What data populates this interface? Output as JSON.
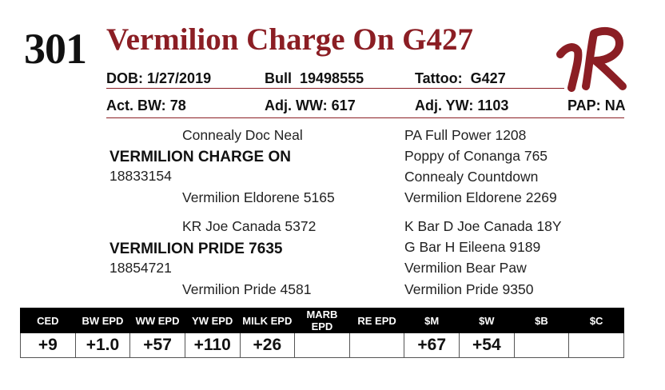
{
  "header": {
    "lot": "301",
    "name": "Vermilion Charge On G427",
    "logo_icon": "vr-brand-logo",
    "accent_color": "#8b1e24"
  },
  "info": {
    "dob_label": "DOB:",
    "dob": "1/27/2019",
    "bull_label": "Bull",
    "reg_no": "19498555",
    "tattoo_label": "Tattoo:",
    "tattoo": "G427",
    "bw_label": "Act. BW:",
    "bw": "78",
    "ww_label": "Adj. WW:",
    "ww": "617",
    "yw_label": "Adj. YW:",
    "yw": "1103",
    "pap_label": "PAP:",
    "pap": "NA"
  },
  "pedigree": {
    "sire_sire": "Connealy Doc Neal",
    "sire": "VERMILION CHARGE ON",
    "sire_reg": "18833154",
    "sire_dam": "Vermilion Eldorene 5165",
    "dam_sire": "KR Joe Canada 5372",
    "dam": "VERMILION PRIDE 7635",
    "dam_reg": "18854721",
    "dam_dam": "Vermilion Pride 4581",
    "right": [
      "PA Full Power 1208",
      "Poppy of Conanga 765",
      "Connealy Countdown",
      "Vermilion Eldorene 2269",
      "K Bar D Joe Canada 18Y",
      "G Bar H Eileena 9189",
      "Vermilion Bear Paw",
      "Vermilion Pride 9350"
    ]
  },
  "epd": {
    "headers": [
      "CED",
      "BW EPD",
      "WW EPD",
      "YW EPD",
      "MILK EPD",
      "MARB EPD",
      "RE EPD",
      "$M",
      "$W",
      "$B",
      "$C"
    ],
    "values": [
      "+9",
      "+1.0",
      "+57",
      "+110",
      "+26",
      "",
      "",
      "+67",
      "+54",
      "",
      ""
    ]
  }
}
